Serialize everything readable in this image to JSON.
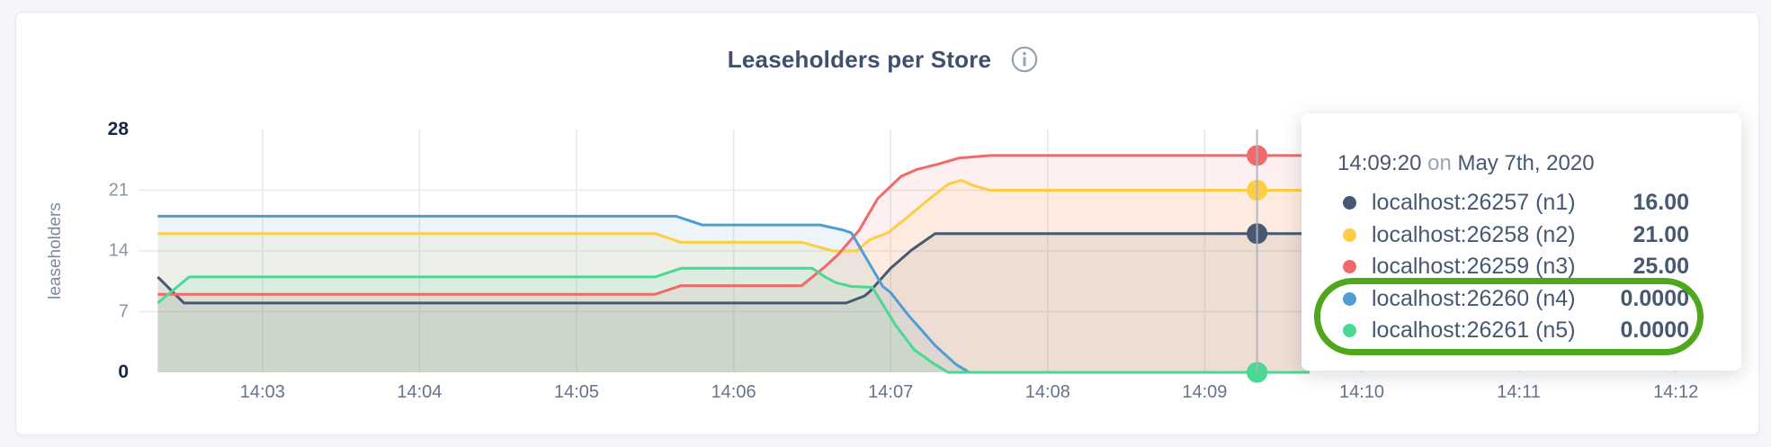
{
  "page": {
    "background": "#f5f6fa"
  },
  "card": {
    "background": "#ffffff",
    "border_color": "#e7e9ee"
  },
  "header": {
    "title": "Leaseholders per Store",
    "info_icon": "i"
  },
  "chart_data": {
    "type": "area",
    "title": "Leaseholders per Store",
    "xlabel": "",
    "ylabel": "leaseholders",
    "ylim": [
      0,
      28
    ],
    "x_domain": [
      "14:02:20",
      "14:12:20"
    ],
    "grid": true,
    "legend_position": "tooltip",
    "y_ticks": [
      {
        "value": 0,
        "label": "0",
        "emphasis": true
      },
      {
        "value": 7,
        "label": "7",
        "emphasis": false
      },
      {
        "value": 14,
        "label": "14",
        "emphasis": false
      },
      {
        "value": 21,
        "label": "21",
        "emphasis": false
      },
      {
        "value": 28,
        "label": "28",
        "emphasis": true
      }
    ],
    "x_ticks": [
      {
        "t": 40,
        "label": "14:03"
      },
      {
        "t": 100,
        "label": "14:04"
      },
      {
        "t": 160,
        "label": "14:05"
      },
      {
        "t": 220,
        "label": "14:06"
      },
      {
        "t": 280,
        "label": "14:07"
      },
      {
        "t": 340,
        "label": "14:08"
      },
      {
        "t": 400,
        "label": "14:09"
      },
      {
        "t": 460,
        "label": "14:10"
      },
      {
        "t": 520,
        "label": "14:11"
      },
      {
        "t": 580,
        "label": "14:12"
      }
    ],
    "area_opacity": 0.1,
    "series": [
      {
        "name": "localhost:26257 (n1)",
        "color": "#475872",
        "points": [
          [
            0,
            11
          ],
          [
            10,
            8
          ],
          [
            263,
            8
          ],
          [
            270,
            8.8
          ],
          [
            272,
            9.3
          ],
          [
            280,
            12
          ],
          [
            288,
            14.1
          ],
          [
            297,
            16
          ],
          [
            440,
            16
          ]
        ]
      },
      {
        "name": "localhost:26258 (n2)",
        "color": "#FFCD44",
        "points": [
          [
            0,
            16
          ],
          [
            190,
            16
          ],
          [
            200,
            15
          ],
          [
            246,
            15
          ],
          [
            258,
            14
          ],
          [
            267,
            14
          ],
          [
            272,
            15.3
          ],
          [
            279,
            16.1
          ],
          [
            286,
            17.8
          ],
          [
            294,
            19.8
          ],
          [
            302,
            21.7
          ],
          [
            307,
            22.15
          ],
          [
            312,
            21.5
          ],
          [
            318,
            21
          ],
          [
            440,
            21
          ]
        ]
      },
      {
        "name": "localhost:26259 (n3)",
        "color": "#F16969",
        "points": [
          [
            0,
            9
          ],
          [
            190,
            9
          ],
          [
            200,
            10
          ],
          [
            246,
            10
          ],
          [
            255,
            12.2
          ],
          [
            260,
            13.6
          ],
          [
            268,
            16.4
          ],
          [
            275,
            20
          ],
          [
            284,
            22.6
          ],
          [
            290,
            23.4
          ],
          [
            298,
            24
          ],
          [
            306,
            24.7
          ],
          [
            318,
            25
          ],
          [
            440,
            25
          ]
        ]
      },
      {
        "name": "localhost:26260 (n4)",
        "color": "#4E9FD1",
        "points": [
          [
            0,
            18
          ],
          [
            198,
            18
          ],
          [
            208,
            17
          ],
          [
            253,
            17
          ],
          [
            262,
            16.4
          ],
          [
            265,
            16.1
          ],
          [
            271,
            13
          ],
          [
            277,
            9.9
          ],
          [
            280,
            9.2
          ],
          [
            287,
            6.5
          ],
          [
            297,
            3.1
          ],
          [
            305,
            0.9
          ],
          [
            310,
            0
          ],
          [
            440,
            0
          ]
        ]
      },
      {
        "name": "localhost:26261 (n5)",
        "color": "#49D990",
        "points": [
          [
            0,
            8
          ],
          [
            12,
            11
          ],
          [
            190,
            11
          ],
          [
            200,
            12
          ],
          [
            250,
            12
          ],
          [
            255,
            11
          ],
          [
            259,
            10.35
          ],
          [
            265,
            9.9
          ],
          [
            273,
            9.8
          ],
          [
            282,
            5.4
          ],
          [
            289,
            2.6
          ],
          [
            297,
            0.9
          ],
          [
            302,
            0
          ],
          [
            440,
            0
          ]
        ]
      }
    ],
    "hover": {
      "t": 420,
      "time_label": "14:09:20",
      "values": [
        16,
        21,
        25,
        0,
        0
      ]
    }
  },
  "tooltip": {
    "time": "14:09:20",
    "conj": "on",
    "date": "May 7th, 2020",
    "rows": [
      {
        "label": "localhost:26257 (n1)",
        "value": "16.00"
      },
      {
        "label": "localhost:26258 (n2)",
        "value": "21.00"
      },
      {
        "label": "localhost:26259 (n3)",
        "value": "25.00"
      },
      {
        "label": "localhost:26260 (n4)",
        "value": "0.0000"
      },
      {
        "label": "localhost:26261 (n5)",
        "value": "0.0000"
      }
    ]
  },
  "annotation": {
    "shape": "rounded-ellipse",
    "color": "#4fa71c"
  }
}
